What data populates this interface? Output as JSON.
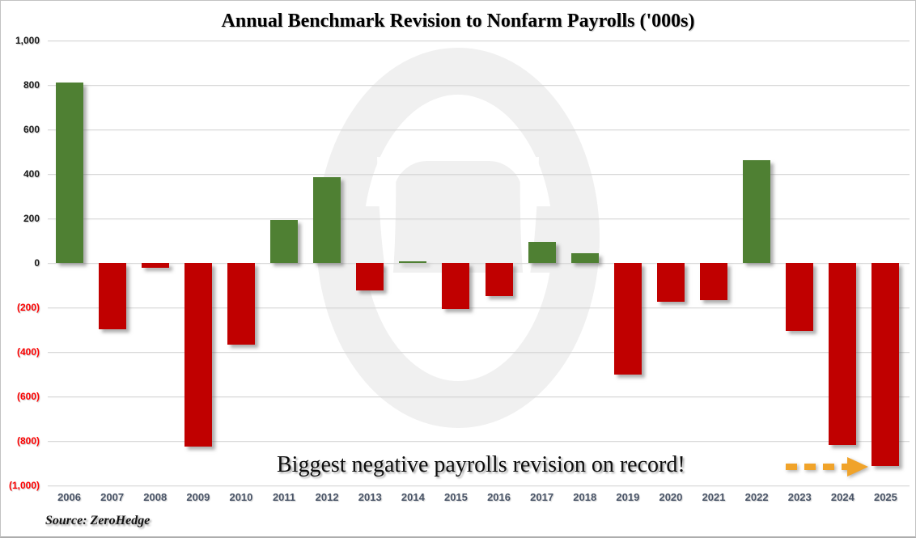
{
  "title": "Annual Benchmark Revision to Nonfarm Payrolls ('000s)",
  "annotation": "Biggest negative payrolls revision on record!",
  "source": "Source: ZeroHedge",
  "colors": {
    "positive_bar": "#4f8033",
    "negative_bar": "#c00000",
    "positive_tick_label": "#1a1a1a",
    "negative_tick_label": "#fe0000",
    "year_label": "#4a5568",
    "gridline": "#d9d9d9",
    "arrow": "#f0a32a",
    "watermark": "#f0f0f0"
  },
  "chart_data": {
    "type": "bar",
    "title": "Annual Benchmark Revision to Nonfarm Payrolls ('000s)",
    "categories": [
      "2006",
      "2007",
      "2008",
      "2009",
      "2010",
      "2011",
      "2012",
      "2013",
      "2014",
      "2015",
      "2016",
      "2017",
      "2018",
      "2019",
      "2020",
      "2021",
      "2022",
      "2023",
      "2024",
      "2025"
    ],
    "values": [
      810,
      -297,
      -21,
      -824,
      -366,
      192,
      386,
      -124,
      7,
      -206,
      -150,
      95,
      43,
      -501,
      -173,
      -166,
      462,
      -306,
      -818,
      -911
    ],
    "xlabel": "",
    "ylabel": "",
    "ylim": [
      -1000,
      1000
    ],
    "y_tick_step": 200,
    "y_tick_labels": [
      "1,000",
      "800",
      "600",
      "400",
      "200",
      "0",
      "(200)",
      "(400)",
      "(600)",
      "(800)",
      "(1,000)"
    ],
    "grid": true,
    "legend": "none",
    "annotations": [
      "Biggest negative payrolls revision on record!"
    ]
  }
}
